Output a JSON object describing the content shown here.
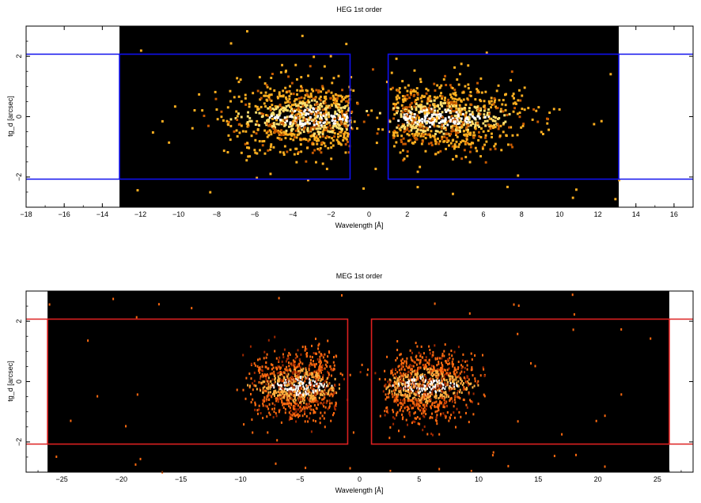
{
  "chart_data": [
    {
      "type": "heatmap",
      "title": "HEG 1st order",
      "xlabel": "Wavelength [Å]",
      "ylabel": "tg_d [arcsec]",
      "xlim": [
        -18,
        17
      ],
      "ylim": [
        -3,
        3
      ],
      "xticks": [
        -18,
        -16,
        -14,
        -12,
        -10,
        -8,
        -6,
        -4,
        -2,
        0,
        2,
        4,
        6,
        8,
        10,
        12,
        14,
        16
      ],
      "yticks": [
        -2,
        0,
        2
      ],
      "detector_range": [
        -13.1,
        13.1
      ],
      "extraction_regions": [
        {
          "x": [
            -13.1,
            -1.0
          ],
          "y": [
            -2.07,
            2.07
          ]
        },
        {
          "x": [
            1.0,
            13.1
          ],
          "y": [
            -2.07,
            2.07
          ]
        }
      ],
      "region_color": "#1010ee",
      "events": {
        "clusters": [
          {
            "x_center": -3.0,
            "x_range": [
              -9.5,
              -1.0
            ],
            "peak_y": 0.0
          },
          {
            "x_center": 3.5,
            "x_range": [
              1.2,
              10.0
            ],
            "peak_y": 0.0
          }
        ]
      },
      "background_color": "#000000",
      "colormap": [
        "#c85a00",
        "#ffb020",
        "#ffe070",
        "#ffffff"
      ]
    },
    {
      "type": "heatmap",
      "title": "MEG 1st order",
      "xlabel": "Wavelength [Å]",
      "ylabel": "tg_d [arcsec]",
      "xlim": [
        -28,
        28
      ],
      "ylim": [
        -3,
        3
      ],
      "xticks": [
        -25,
        -20,
        -15,
        -10,
        -5,
        0,
        5,
        10,
        15,
        20,
        25
      ],
      "yticks": [
        -2,
        0,
        2
      ],
      "detector_range": [
        -26.2,
        26.0
      ],
      "extraction_regions": [
        {
          "x": [
            -26.2,
            -1.0
          ],
          "y": [
            -2.07,
            2.07
          ]
        },
        {
          "x": [
            1.0,
            26.0
          ],
          "y": [
            -2.07,
            2.07
          ]
        }
      ],
      "region_color": "#dd2020",
      "events": {
        "clusters": [
          {
            "x_center": -5.0,
            "x_range": [
              -10.5,
              -2.0
            ],
            "peak_y": -0.1
          },
          {
            "x_center": 5.5,
            "x_range": [
              2.0,
              10.5
            ],
            "peak_y": -0.1
          }
        ]
      },
      "background_color": "#000000",
      "colormap": [
        "#a02800",
        "#ff6a10",
        "#ffb040",
        "#ffffff"
      ]
    }
  ]
}
